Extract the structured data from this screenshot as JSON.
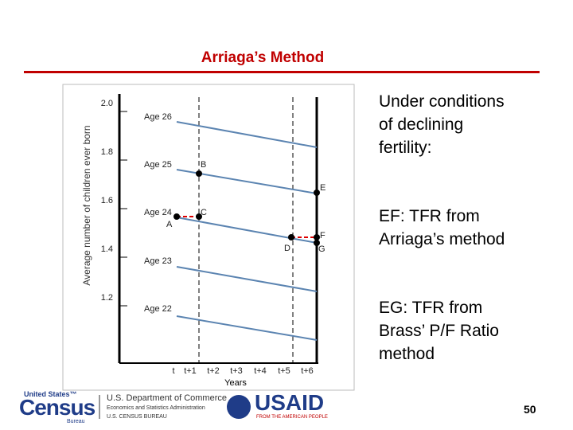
{
  "title": "Arriaga’s Method",
  "figure": {
    "y_axis_label": "Average number of children ever born",
    "x_axis_label": "Years",
    "y_tick_labels": [
      "2.0",
      "1.8",
      "1.6",
      "1.4",
      "1.2"
    ],
    "x_tick_labels": [
      "t",
      "t+1",
      "t+2",
      "t+3",
      "t+4",
      "t+5",
      "t+6"
    ],
    "age_labels": [
      "Age 26",
      "Age 25",
      "Age 24",
      "Age 23",
      "Age 22"
    ],
    "point_labels": [
      "A",
      "B",
      "C",
      "D",
      "E",
      "F",
      "G"
    ]
  },
  "text": [
    "Under conditions of declining fertility:",
    "EF: TFR from Arriaga’s method",
    "EG: TFR from Brass’ P/F Ratio method"
  ],
  "footer": {
    "census": [
      "United States™",
      "Census",
      "Bureau"
    ],
    "commerce": [
      "U.S. Department of Commerce",
      "Economics and Statistics Administration",
      "U.S. CENSUS BUREAU"
    ],
    "usaid": [
      "USAID",
      "FROM THE AMERICAN PEOPLE"
    ],
    "page_number": "50"
  }
}
